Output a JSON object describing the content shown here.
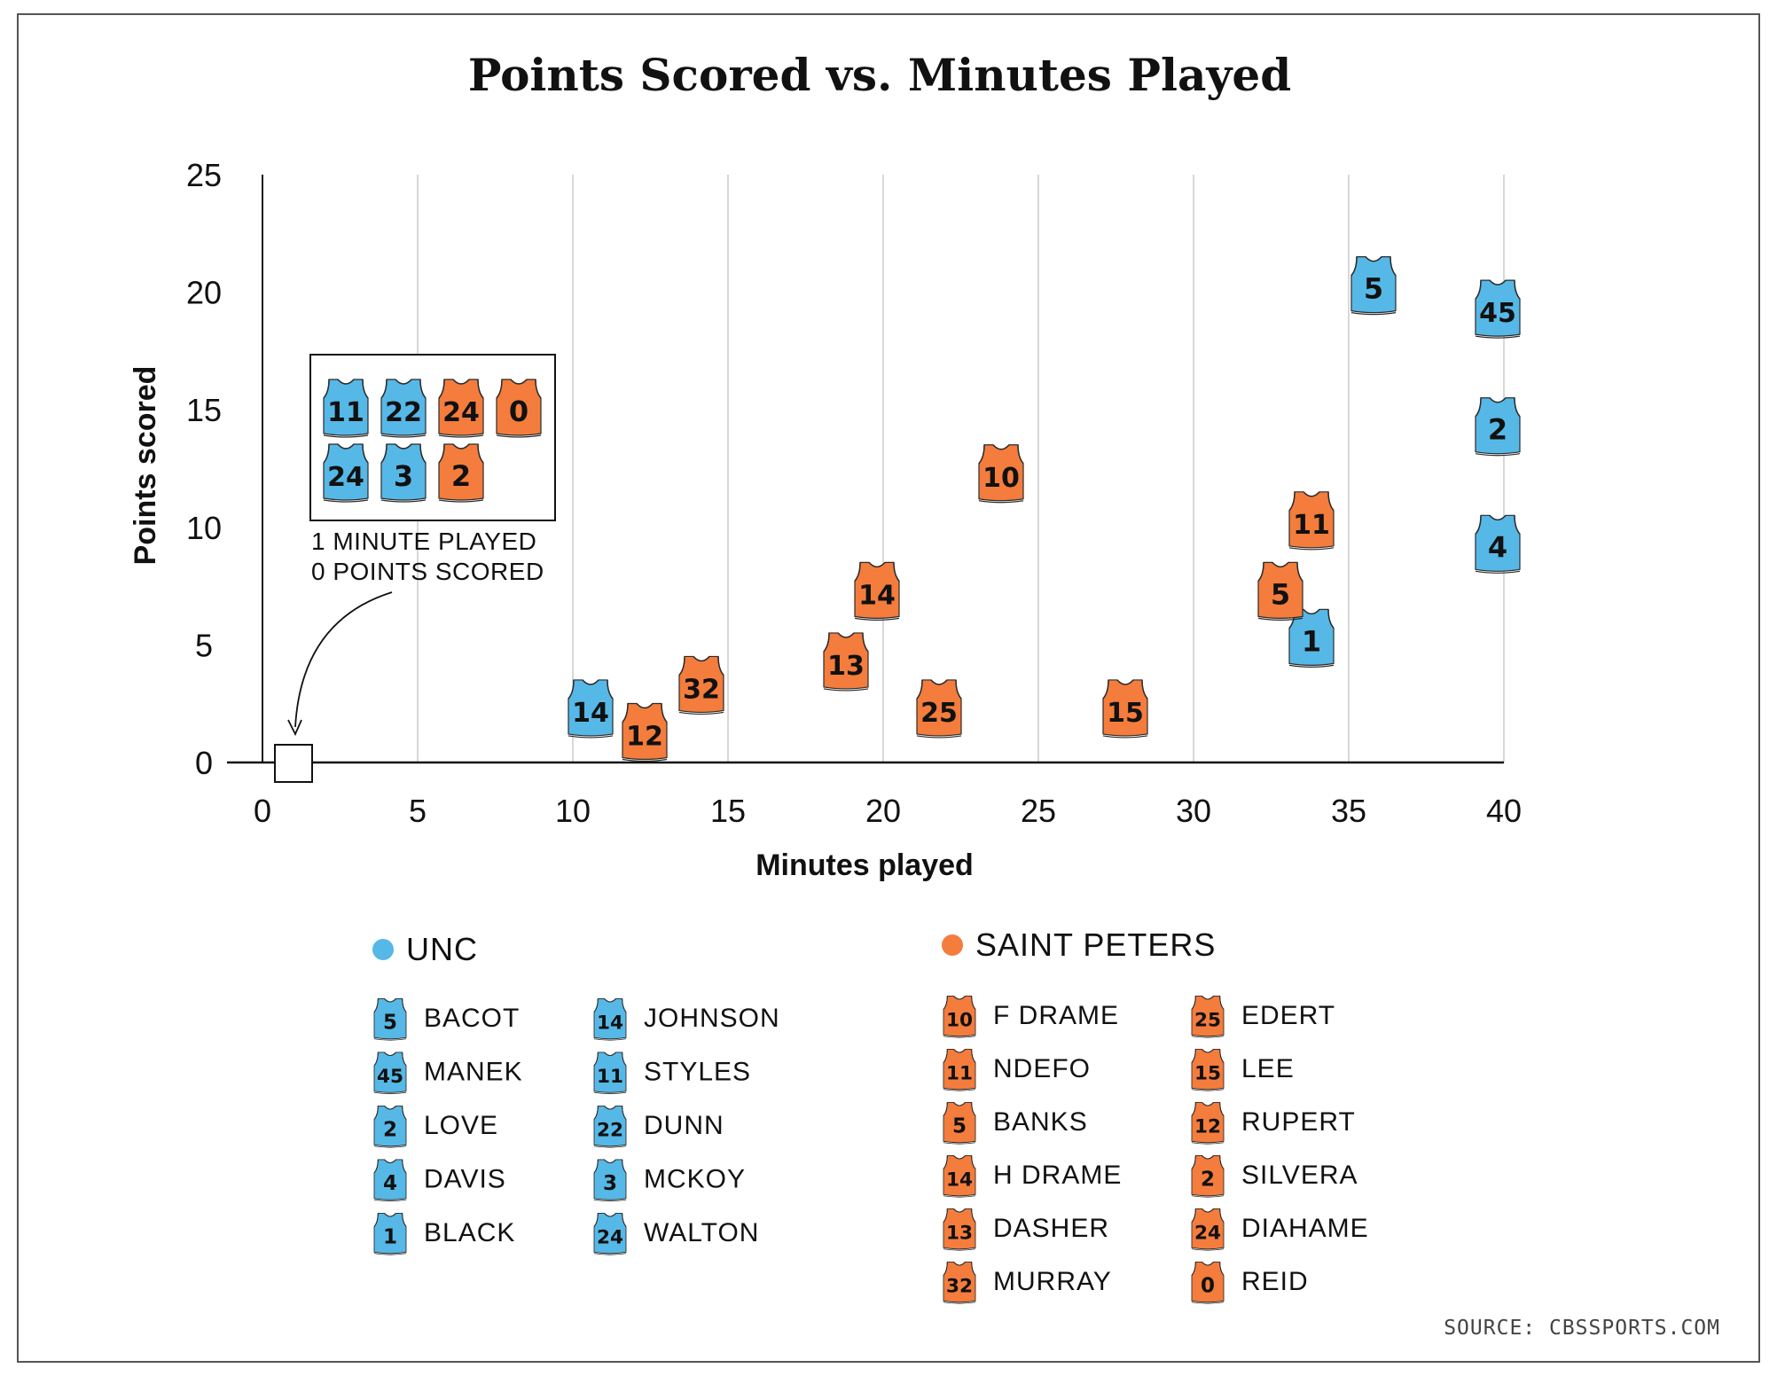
{
  "chart_data": {
    "type": "scatter",
    "title": "Points Scored vs. Minutes Played",
    "xlabel": "Minutes played",
    "ylabel": "Points scored",
    "xlim": [
      0,
      40
    ],
    "ylim": [
      0,
      25
    ],
    "xticks": [
      0,
      5,
      10,
      15,
      20,
      25,
      30,
      35,
      40
    ],
    "yticks": [
      0,
      5,
      10,
      15,
      20,
      25
    ],
    "grid": "vertical",
    "marker": "jersey",
    "series": [
      {
        "name": "UNC",
        "color": "#56b8e6",
        "points": [
          {
            "number": "5",
            "player": "BACOT",
            "x": 35,
            "y": 20
          },
          {
            "number": "45",
            "player": "MANEK",
            "x": 39,
            "y": 19
          },
          {
            "number": "2",
            "player": "LOVE",
            "x": 39,
            "y": 14
          },
          {
            "number": "4",
            "player": "DAVIS",
            "x": 39,
            "y": 9
          },
          {
            "number": "1",
            "player": "BLACK",
            "x": 33,
            "y": 5
          },
          {
            "number": "14",
            "player": "JOHNSON",
            "x": 10,
            "y": 2
          },
          {
            "number": "11",
            "player": "STYLES",
            "x": 1,
            "y": 0
          },
          {
            "number": "22",
            "player": "DUNN",
            "x": 1,
            "y": 0
          },
          {
            "number": "3",
            "player": "MCKOY",
            "x": 1,
            "y": 0
          },
          {
            "number": "24",
            "player": "WALTON",
            "x": 1,
            "y": 0
          }
        ]
      },
      {
        "name": "SAINT PETERS",
        "color": "#f47c3c",
        "points": [
          {
            "number": "10",
            "player": "F DRAME",
            "x": 23,
            "y": 12
          },
          {
            "number": "11",
            "player": "NDEFO",
            "x": 33,
            "y": 10
          },
          {
            "number": "5",
            "player": "BANKS",
            "x": 32,
            "y": 7
          },
          {
            "number": "14",
            "player": "H DRAME",
            "x": 19,
            "y": 7
          },
          {
            "number": "13",
            "player": "DASHER",
            "x": 18,
            "y": 4
          },
          {
            "number": "32",
            "player": "MURRAY",
            "x": 13,
            "y": 3
          },
          {
            "number": "25",
            "player": "EDERT",
            "x": 21,
            "y": 2
          },
          {
            "number": "15",
            "player": "LEE",
            "x": 27,
            "y": 2
          },
          {
            "number": "12",
            "player": "RUPERT",
            "x": 11,
            "y": 1
          },
          {
            "number": "2",
            "player": "SILVERA",
            "x": 1,
            "y": 0
          },
          {
            "number": "24",
            "player": "DIAHAME",
            "x": 1,
            "y": 0
          },
          {
            "number": "0",
            "player": "REID",
            "x": 1,
            "y": 0
          }
        ]
      }
    ],
    "annotation": {
      "lines": [
        "1 MINUTE PLAYED",
        "0 POINTS SCORED"
      ],
      "jerseys": [
        {
          "number": "11",
          "team": 0
        },
        {
          "number": "22",
          "team": 0
        },
        {
          "number": "24",
          "team": 1
        },
        {
          "number": "0",
          "team": 1
        },
        {
          "number": "24",
          "team": 0
        },
        {
          "number": "3",
          "team": 0
        },
        {
          "number": "2",
          "team": 1
        }
      ]
    },
    "legend": {
      "placement": "bottom",
      "teams": [
        {
          "label": "UNC",
          "team": 0
        },
        {
          "label": "SAINT PETERS",
          "team": 1
        }
      ]
    },
    "source": "SOURCE: CBSSPORTS.COM"
  }
}
